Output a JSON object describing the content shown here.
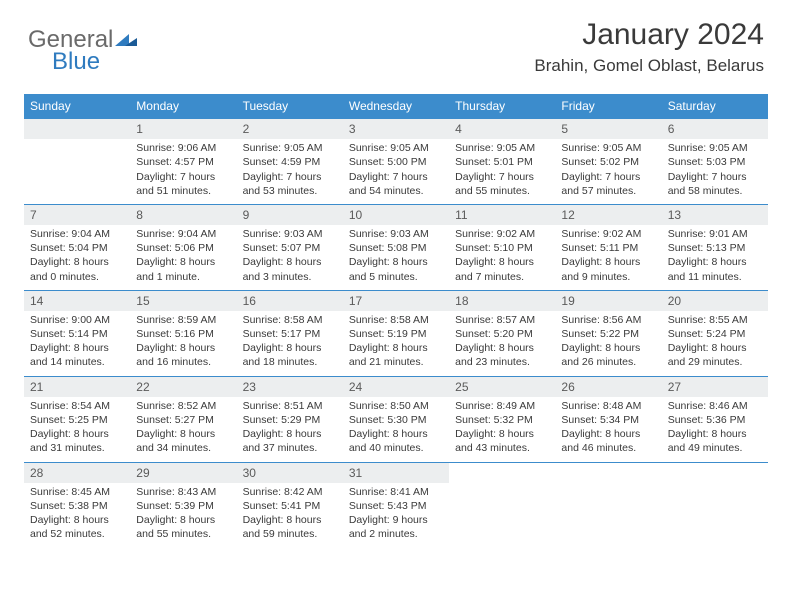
{
  "brand": {
    "part1": "General",
    "part2": "Blue"
  },
  "title": "January 2024",
  "location": "Brahin, Gomel Oblast, Belarus",
  "colors": {
    "header_bg": "#3c8ccc",
    "header_text": "#ffffff",
    "daynum_bg": "#eceeef",
    "text": "#3a3a3a",
    "brand_gray": "#6a6a6a",
    "brand_blue": "#2f7bbf",
    "rule": "#3c8ccc"
  },
  "layout": {
    "cols": 7,
    "rows": 5,
    "start_col": 1
  },
  "day_names": [
    "Sunday",
    "Monday",
    "Tuesday",
    "Wednesday",
    "Thursday",
    "Friday",
    "Saturday"
  ],
  "days": [
    {
      "n": 1,
      "sunrise": "9:06 AM",
      "sunset": "4:57 PM",
      "daylight": "7 hours and 51 minutes."
    },
    {
      "n": 2,
      "sunrise": "9:05 AM",
      "sunset": "4:59 PM",
      "daylight": "7 hours and 53 minutes."
    },
    {
      "n": 3,
      "sunrise": "9:05 AM",
      "sunset": "5:00 PM",
      "daylight": "7 hours and 54 minutes."
    },
    {
      "n": 4,
      "sunrise": "9:05 AM",
      "sunset": "5:01 PM",
      "daylight": "7 hours and 55 minutes."
    },
    {
      "n": 5,
      "sunrise": "9:05 AM",
      "sunset": "5:02 PM",
      "daylight": "7 hours and 57 minutes."
    },
    {
      "n": 6,
      "sunrise": "9:05 AM",
      "sunset": "5:03 PM",
      "daylight": "7 hours and 58 minutes."
    },
    {
      "n": 7,
      "sunrise": "9:04 AM",
      "sunset": "5:04 PM",
      "daylight": "8 hours and 0 minutes."
    },
    {
      "n": 8,
      "sunrise": "9:04 AM",
      "sunset": "5:06 PM",
      "daylight": "8 hours and 1 minute."
    },
    {
      "n": 9,
      "sunrise": "9:03 AM",
      "sunset": "5:07 PM",
      "daylight": "8 hours and 3 minutes."
    },
    {
      "n": 10,
      "sunrise": "9:03 AM",
      "sunset": "5:08 PM",
      "daylight": "8 hours and 5 minutes."
    },
    {
      "n": 11,
      "sunrise": "9:02 AM",
      "sunset": "5:10 PM",
      "daylight": "8 hours and 7 minutes."
    },
    {
      "n": 12,
      "sunrise": "9:02 AM",
      "sunset": "5:11 PM",
      "daylight": "8 hours and 9 minutes."
    },
    {
      "n": 13,
      "sunrise": "9:01 AM",
      "sunset": "5:13 PM",
      "daylight": "8 hours and 11 minutes."
    },
    {
      "n": 14,
      "sunrise": "9:00 AM",
      "sunset": "5:14 PM",
      "daylight": "8 hours and 14 minutes."
    },
    {
      "n": 15,
      "sunrise": "8:59 AM",
      "sunset": "5:16 PM",
      "daylight": "8 hours and 16 minutes."
    },
    {
      "n": 16,
      "sunrise": "8:58 AM",
      "sunset": "5:17 PM",
      "daylight": "8 hours and 18 minutes."
    },
    {
      "n": 17,
      "sunrise": "8:58 AM",
      "sunset": "5:19 PM",
      "daylight": "8 hours and 21 minutes."
    },
    {
      "n": 18,
      "sunrise": "8:57 AM",
      "sunset": "5:20 PM",
      "daylight": "8 hours and 23 minutes."
    },
    {
      "n": 19,
      "sunrise": "8:56 AM",
      "sunset": "5:22 PM",
      "daylight": "8 hours and 26 minutes."
    },
    {
      "n": 20,
      "sunrise": "8:55 AM",
      "sunset": "5:24 PM",
      "daylight": "8 hours and 29 minutes."
    },
    {
      "n": 21,
      "sunrise": "8:54 AM",
      "sunset": "5:25 PM",
      "daylight": "8 hours and 31 minutes."
    },
    {
      "n": 22,
      "sunrise": "8:52 AM",
      "sunset": "5:27 PM",
      "daylight": "8 hours and 34 minutes."
    },
    {
      "n": 23,
      "sunrise": "8:51 AM",
      "sunset": "5:29 PM",
      "daylight": "8 hours and 37 minutes."
    },
    {
      "n": 24,
      "sunrise": "8:50 AM",
      "sunset": "5:30 PM",
      "daylight": "8 hours and 40 minutes."
    },
    {
      "n": 25,
      "sunrise": "8:49 AM",
      "sunset": "5:32 PM",
      "daylight": "8 hours and 43 minutes."
    },
    {
      "n": 26,
      "sunrise": "8:48 AM",
      "sunset": "5:34 PM",
      "daylight": "8 hours and 46 minutes."
    },
    {
      "n": 27,
      "sunrise": "8:46 AM",
      "sunset": "5:36 PM",
      "daylight": "8 hours and 49 minutes."
    },
    {
      "n": 28,
      "sunrise": "8:45 AM",
      "sunset": "5:38 PM",
      "daylight": "8 hours and 52 minutes."
    },
    {
      "n": 29,
      "sunrise": "8:43 AM",
      "sunset": "5:39 PM",
      "daylight": "8 hours and 55 minutes."
    },
    {
      "n": 30,
      "sunrise": "8:42 AM",
      "sunset": "5:41 PM",
      "daylight": "8 hours and 59 minutes."
    },
    {
      "n": 31,
      "sunrise": "8:41 AM",
      "sunset": "5:43 PM",
      "daylight": "9 hours and 2 minutes."
    }
  ],
  "labels": {
    "sunrise": "Sunrise:",
    "sunset": "Sunset:",
    "daylight": "Daylight:"
  }
}
